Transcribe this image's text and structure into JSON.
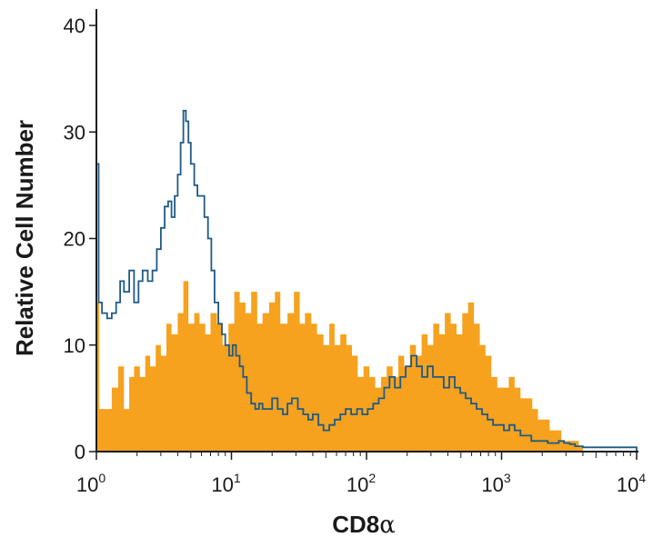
{
  "chart_data": {
    "type": "histogram",
    "xlabel_main": "CD8",
    "xlabel_symbol": "α",
    "ylabel": "Relative Cell Number",
    "xscale": "log",
    "xlim": [
      1,
      10000
    ],
    "ylim": [
      0,
      40
    ],
    "y_ticks": [
      0,
      10,
      20,
      30,
      40
    ],
    "x_ticks": [
      {
        "base": "10",
        "exp": "0",
        "value": 1
      },
      {
        "base": "10",
        "exp": "1",
        "value": 10
      },
      {
        "base": "10",
        "exp": "2",
        "value": 100
      },
      {
        "base": "10",
        "exp": "3",
        "value": 1000
      },
      {
        "base": "10",
        "exp": "4",
        "value": 10000
      }
    ],
    "grid": false,
    "colors": {
      "filled": "#f6a21e",
      "outline": "#1f5a86"
    },
    "series": [
      {
        "style": "filled",
        "color": "#f6a21e",
        "points": [
          [
            1.0,
            14
          ],
          [
            1.05,
            4
          ],
          [
            1.15,
            4
          ],
          [
            1.3,
            6
          ],
          [
            1.45,
            8
          ],
          [
            1.6,
            4
          ],
          [
            1.75,
            7
          ],
          [
            1.9,
            8
          ],
          [
            2.1,
            7
          ],
          [
            2.3,
            9
          ],
          [
            2.5,
            8
          ],
          [
            2.75,
            10
          ],
          [
            3.0,
            9
          ],
          [
            3.3,
            12
          ],
          [
            3.6,
            11
          ],
          [
            4.0,
            13
          ],
          [
            4.4,
            16
          ],
          [
            4.8,
            12
          ],
          [
            5.3,
            13
          ],
          [
            5.8,
            12
          ],
          [
            6.4,
            11
          ],
          [
            7.0,
            13
          ],
          [
            7.8,
            12
          ],
          [
            8.6,
            10
          ],
          [
            9.5,
            12
          ],
          [
            10.5,
            15
          ],
          [
            11.5,
            14
          ],
          [
            12.7,
            13
          ],
          [
            14,
            15
          ],
          [
            15.5,
            12
          ],
          [
            17,
            13
          ],
          [
            19,
            14
          ],
          [
            21,
            15
          ],
          [
            23,
            12
          ],
          [
            26,
            13
          ],
          [
            29,
            15
          ],
          [
            32,
            12
          ],
          [
            35,
            13
          ],
          [
            39,
            12
          ],
          [
            43,
            11
          ],
          [
            48,
            10
          ],
          [
            53,
            12
          ],
          [
            58,
            10
          ],
          [
            64,
            11
          ],
          [
            71,
            10
          ],
          [
            78,
            9
          ],
          [
            86,
            7
          ],
          [
            95,
            8
          ],
          [
            105,
            7
          ],
          [
            116,
            6
          ],
          [
            128,
            7
          ],
          [
            141,
            8
          ],
          [
            156,
            7
          ],
          [
            172,
            9
          ],
          [
            190,
            8
          ],
          [
            210,
            10
          ],
          [
            232,
            9
          ],
          [
            256,
            11
          ],
          [
            283,
            10
          ],
          [
            312,
            12
          ],
          [
            345,
            11
          ],
          [
            380,
            13
          ],
          [
            420,
            12
          ],
          [
            464,
            11
          ],
          [
            512,
            13
          ],
          [
            565,
            14
          ],
          [
            624,
            12
          ],
          [
            690,
            10
          ],
          [
            760,
            9
          ],
          [
            840,
            7
          ],
          [
            930,
            6
          ],
          [
            1030,
            6
          ],
          [
            1130,
            7
          ],
          [
            1250,
            6
          ],
          [
            1380,
            5
          ],
          [
            1530,
            5
          ],
          [
            1690,
            4
          ],
          [
            1860,
            3
          ],
          [
            2060,
            3
          ],
          [
            2270,
            2
          ],
          [
            2510,
            2
          ],
          [
            2770,
            1
          ],
          [
            3060,
            1
          ],
          [
            3380,
            1
          ],
          [
            3730,
            0.5
          ],
          [
            4000,
            0
          ]
        ]
      },
      {
        "style": "outline",
        "color": "#1f5a86",
        "points": [
          [
            1.0,
            27
          ],
          [
            1.04,
            14
          ],
          [
            1.1,
            13
          ],
          [
            1.2,
            12.5
          ],
          [
            1.3,
            13
          ],
          [
            1.4,
            14
          ],
          [
            1.5,
            16
          ],
          [
            1.6,
            15
          ],
          [
            1.75,
            17
          ],
          [
            1.9,
            14
          ],
          [
            2.05,
            16
          ],
          [
            2.2,
            17
          ],
          [
            2.4,
            16
          ],
          [
            2.6,
            17
          ],
          [
            2.8,
            19
          ],
          [
            3.0,
            21
          ],
          [
            3.2,
            23
          ],
          [
            3.4,
            23.5
          ],
          [
            3.6,
            22
          ],
          [
            3.8,
            24
          ],
          [
            4.0,
            26
          ],
          [
            4.2,
            29
          ],
          [
            4.4,
            32
          ],
          [
            4.6,
            31
          ],
          [
            4.8,
            29
          ],
          [
            5.0,
            27
          ],
          [
            5.3,
            25
          ],
          [
            5.6,
            24
          ],
          [
            6.0,
            24
          ],
          [
            6.3,
            22
          ],
          [
            6.7,
            20
          ],
          [
            7.1,
            17
          ],
          [
            7.5,
            14
          ],
          [
            8.0,
            12
          ],
          [
            8.5,
            11
          ],
          [
            9.0,
            10
          ],
          [
            9.6,
            9
          ],
          [
            10.2,
            10
          ],
          [
            10.8,
            9
          ],
          [
            11.5,
            8
          ],
          [
            12.2,
            7
          ],
          [
            13,
            5.5
          ],
          [
            14,
            4.5
          ],
          [
            15,
            4
          ],
          [
            16,
            4.5
          ],
          [
            17,
            4
          ],
          [
            18.5,
            4
          ],
          [
            20,
            5
          ],
          [
            22,
            4
          ],
          [
            24,
            3.5
          ],
          [
            26,
            4.5
          ],
          [
            28,
            5
          ],
          [
            31,
            4
          ],
          [
            34,
            3.5
          ],
          [
            37,
            3
          ],
          [
            40,
            3.5
          ],
          [
            44,
            2.5
          ],
          [
            48,
            2
          ],
          [
            53,
            2.5
          ],
          [
            58,
            3
          ],
          [
            64,
            3.5
          ],
          [
            70,
            4
          ],
          [
            77,
            3.5
          ],
          [
            85,
            4
          ],
          [
            93,
            3.5
          ],
          [
            102,
            4
          ],
          [
            112,
            4.5
          ],
          [
            123,
            5
          ],
          [
            135,
            6
          ],
          [
            148,
            7
          ],
          [
            162,
            6
          ],
          [
            178,
            7
          ],
          [
            195,
            8
          ],
          [
            214,
            9
          ],
          [
            235,
            8
          ],
          [
            258,
            7
          ],
          [
            283,
            8
          ],
          [
            310,
            7
          ],
          [
            340,
            7
          ],
          [
            373,
            6
          ],
          [
            410,
            7
          ],
          [
            450,
            6
          ],
          [
            494,
            5.5
          ],
          [
            542,
            5
          ],
          [
            595,
            4.5
          ],
          [
            653,
            4
          ],
          [
            717,
            3.5
          ],
          [
            787,
            3
          ],
          [
            864,
            2.5
          ],
          [
            948,
            2.5
          ],
          [
            1040,
            2
          ],
          [
            1140,
            2.5
          ],
          [
            1250,
            2
          ],
          [
            1380,
            1.5
          ],
          [
            1510,
            1.5
          ],
          [
            1660,
            1
          ],
          [
            1820,
            1
          ],
          [
            2000,
            1
          ],
          [
            2200,
            0.8
          ],
          [
            2400,
            0.8
          ],
          [
            2650,
            1
          ],
          [
            2900,
            0.8
          ],
          [
            3200,
            0.7
          ],
          [
            3500,
            0.5
          ],
          [
            4000,
            0.4
          ],
          [
            5000,
            0.4
          ],
          [
            6000,
            0.4
          ],
          [
            7000,
            0.4
          ],
          [
            8000,
            0.4
          ],
          [
            9000,
            0.4
          ],
          [
            10000,
            0.4
          ],
          [
            10000,
            0
          ]
        ]
      }
    ]
  }
}
